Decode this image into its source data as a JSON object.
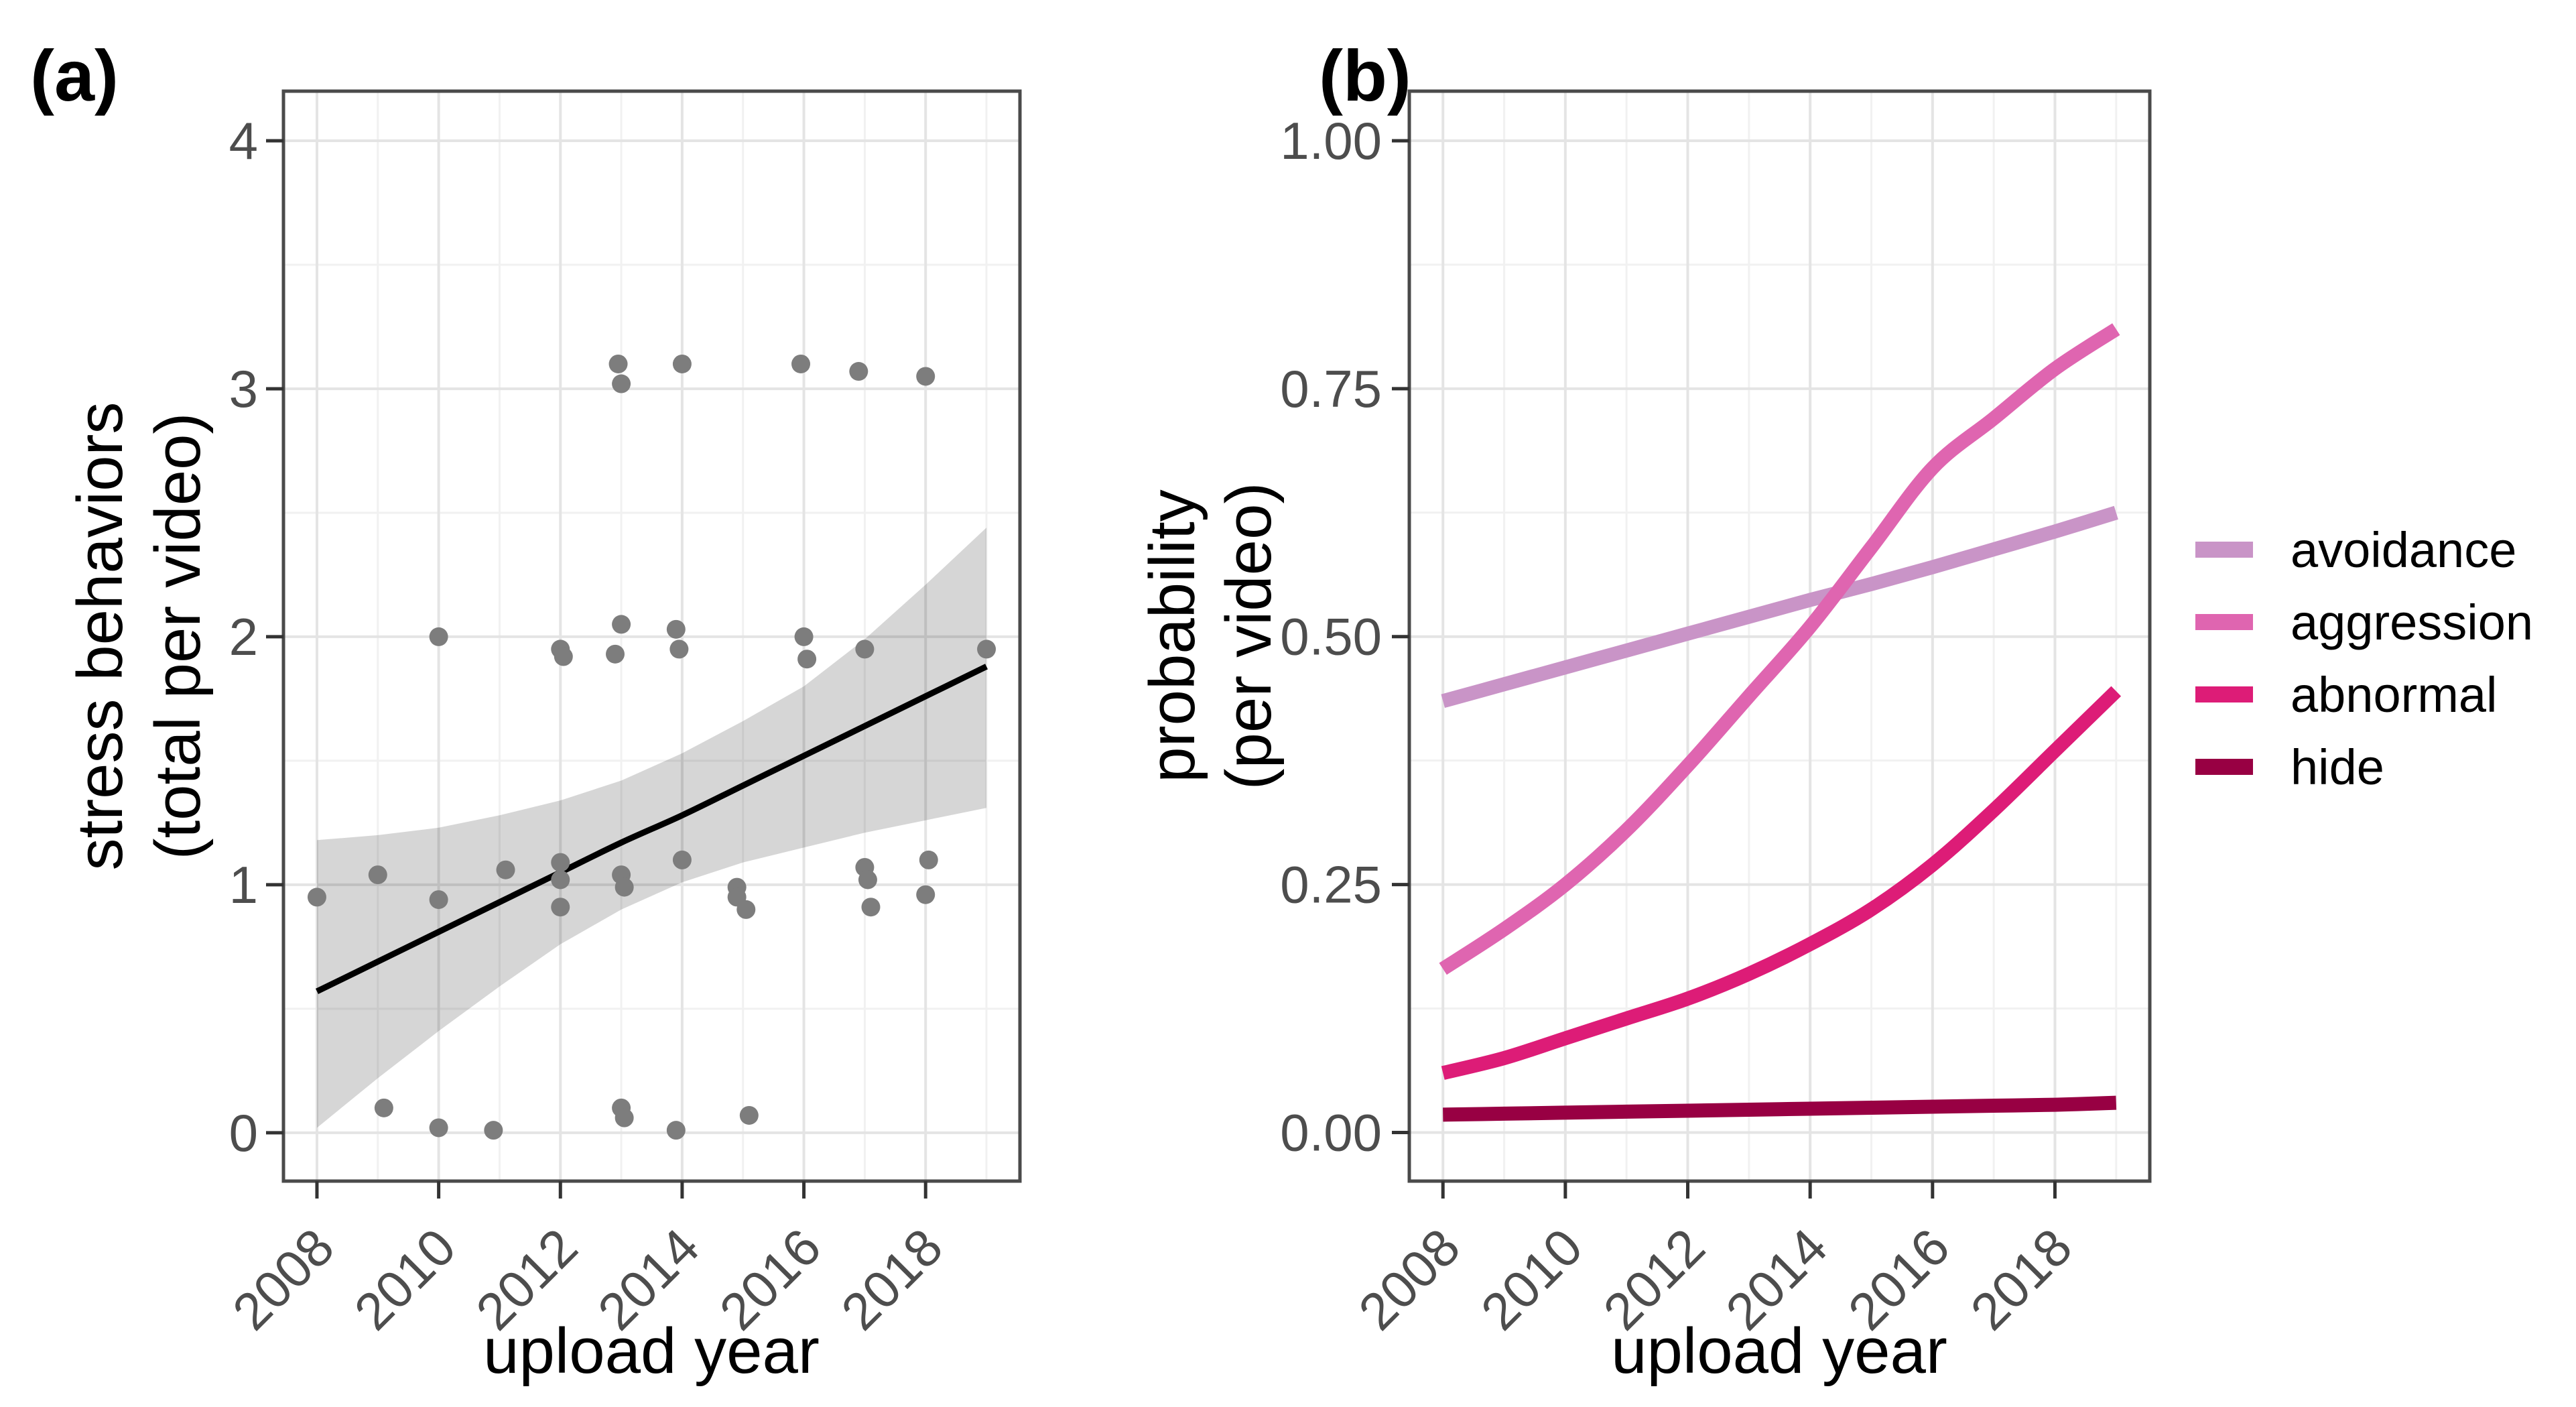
{
  "figure": {
    "background": "#ffffff",
    "panels": [
      "(a)",
      "(b)"
    ]
  },
  "frame": {
    "border_color": "#4a4a4a",
    "tick_color": "#333333",
    "tick_label_color": "#4d4d4d",
    "grid_major_color": "#e4e4e4",
    "grid_minor_color": "#f1f1f1"
  },
  "chart_data": [
    {
      "id": "panel_a",
      "type": "scatter",
      "panel_label": "(a)",
      "xlabel": "upload year",
      "ylabel_lines": [
        "stress behaviors",
        "(total per video)"
      ],
      "xlim": [
        2007.45,
        2019.55
      ],
      "ylim": [
        -0.195,
        4.2
      ],
      "grid": "on",
      "x_ticks": {
        "values": [
          2008,
          2010,
          2012,
          2014,
          2016,
          2018
        ],
        "labels": [
          "2008",
          "2010",
          "2012",
          "2014",
          "2016",
          "2018"
        ],
        "minor": [
          2009,
          2011,
          2013,
          2015,
          2017,
          2019
        ]
      },
      "y_ticks": {
        "values": [
          0,
          1,
          2,
          3,
          4
        ],
        "labels": [
          "0",
          "1",
          "2",
          "3",
          "4"
        ],
        "minor": [
          0.5,
          1.5,
          2.5,
          3.5
        ]
      },
      "points": [
        [
          2008,
          0.95
        ],
        [
          2009,
          1.04
        ],
        [
          2009.1,
          0.1
        ],
        [
          2010,
          2.0
        ],
        [
          2010,
          0.94
        ],
        [
          2010,
          0.02
        ],
        [
          2011.1,
          1.06
        ],
        [
          2010.9,
          0.01
        ],
        [
          2012,
          1.95
        ],
        [
          2012.05,
          1.92
        ],
        [
          2012,
          1.09
        ],
        [
          2012,
          1.02
        ],
        [
          2012,
          0.91
        ],
        [
          2012.95,
          3.1
        ],
        [
          2013,
          3.02
        ],
        [
          2013,
          2.05
        ],
        [
          2012.9,
          1.93
        ],
        [
          2013,
          1.04
        ],
        [
          2013.05,
          0.99
        ],
        [
          2013,
          0.1
        ],
        [
          2013.05,
          0.06
        ],
        [
          2014,
          3.1
        ],
        [
          2013.9,
          2.03
        ],
        [
          2013.95,
          1.95
        ],
        [
          2014,
          1.1
        ],
        [
          2013.9,
          0.01
        ],
        [
          2014.9,
          0.99
        ],
        [
          2014.9,
          0.95
        ],
        [
          2015.05,
          0.9
        ],
        [
          2015.1,
          0.07
        ],
        [
          2015.95,
          3.1
        ],
        [
          2016,
          2.0
        ],
        [
          2016.05,
          1.91
        ],
        [
          2016.9,
          3.07
        ],
        [
          2017,
          1.95
        ],
        [
          2017,
          1.07
        ],
        [
          2017.05,
          1.02
        ],
        [
          2017.1,
          0.91
        ],
        [
          2018,
          3.05
        ],
        [
          2018.05,
          1.1
        ],
        [
          2018,
          0.96
        ],
        [
          2019,
          1.95
        ]
      ],
      "regression": {
        "x": [
          2008,
          2009,
          2010,
          2011,
          2012,
          2013,
          2014,
          2015,
          2016,
          2017,
          2018,
          2019
        ],
        "y": [
          0.57,
          0.69,
          0.81,
          0.93,
          1.05,
          1.17,
          1.28,
          1.4,
          1.52,
          1.64,
          1.76,
          1.88
        ],
        "ci_lower": [
          0.02,
          0.22,
          0.41,
          0.59,
          0.76,
          0.9,
          1.01,
          1.09,
          1.15,
          1.21,
          1.26,
          1.31
        ],
        "ci_upper": [
          1.18,
          1.2,
          1.23,
          1.28,
          1.34,
          1.42,
          1.53,
          1.66,
          1.8,
          1.99,
          2.21,
          2.44
        ]
      },
      "style": {
        "point_color": "#7d7d7d",
        "point_radius": 14,
        "line_color": "#000000",
        "line_width": 9,
        "ribbon_color": "rgba(0,0,0,0.16)"
      }
    },
    {
      "id": "panel_b",
      "type": "line",
      "panel_label": "(b)",
      "xlabel": "upload year",
      "ylabel_lines": [
        "probability",
        "(per video)"
      ],
      "xlim": [
        2007.45,
        2019.55
      ],
      "ylim": [
        -0.049,
        1.05
      ],
      "grid": "on",
      "legend_position": "right",
      "x_ticks": {
        "values": [
          2008,
          2010,
          2012,
          2014,
          2016,
          2018
        ],
        "labels": [
          "2008",
          "2010",
          "2012",
          "2014",
          "2016",
          "2018"
        ],
        "minor": [
          2009,
          2011,
          2013,
          2015,
          2017,
          2019
        ]
      },
      "y_ticks": {
        "values": [
          0,
          0.25,
          0.5,
          0.75,
          1
        ],
        "labels": [
          "0.00",
          "0.25",
          "0.50",
          "0.75",
          "1.00"
        ],
        "minor": [
          0.125,
          0.375,
          0.625,
          0.875
        ]
      },
      "x": [
        2008,
        2009,
        2010,
        2011,
        2012,
        2013,
        2014,
        2015,
        2016,
        2017,
        2018,
        2019
      ],
      "series": [
        {
          "name": "avoidance",
          "color": "#C994C7",
          "values": [
            0.435,
            0.452,
            0.469,
            0.486,
            0.503,
            0.52,
            0.537,
            0.553,
            0.57,
            0.588,
            0.606,
            0.625
          ]
        },
        {
          "name": "aggression",
          "color": "#DF65B0",
          "values": [
            0.165,
            0.205,
            0.25,
            0.305,
            0.37,
            0.44,
            0.51,
            0.59,
            0.67,
            0.72,
            0.77,
            0.81
          ]
        },
        {
          "name": "abnormal",
          "color": "#DD1C77",
          "values": [
            0.06,
            0.075,
            0.095,
            0.115,
            0.135,
            0.16,
            0.19,
            0.225,
            0.27,
            0.325,
            0.385,
            0.445
          ]
        },
        {
          "name": "hide",
          "color": "#980043",
          "values": [
            0.018,
            0.019,
            0.02,
            0.021,
            0.022,
            0.023,
            0.024,
            0.025,
            0.026,
            0.027,
            0.028,
            0.03
          ]
        }
      ],
      "style": {
        "line_width": 21
      }
    }
  ]
}
